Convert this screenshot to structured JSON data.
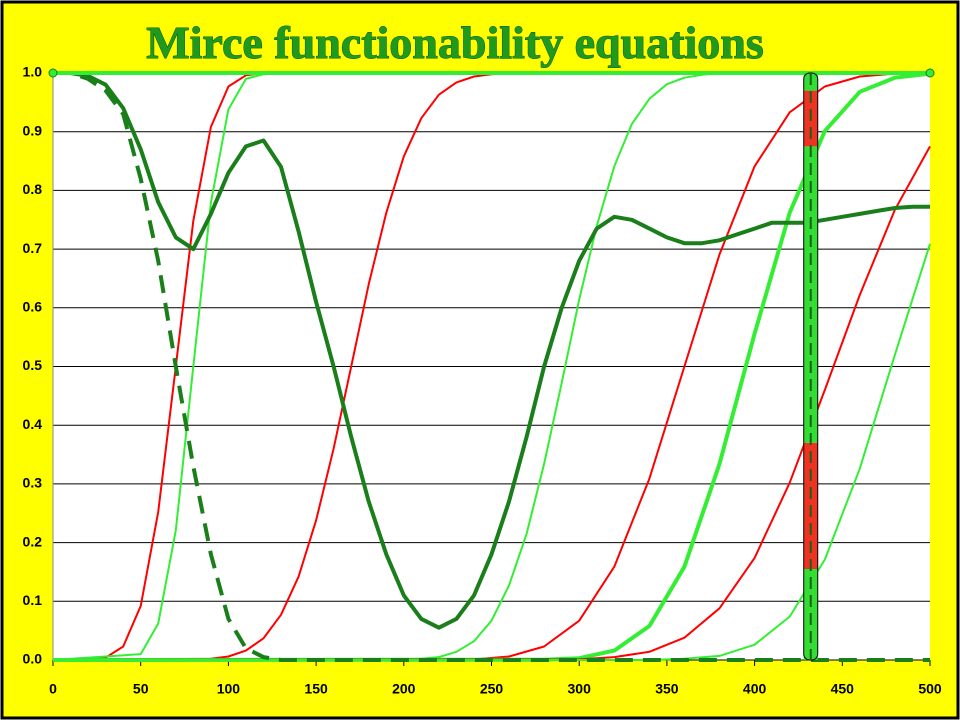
{
  "chart_data": {
    "type": "line",
    "title": "Mirce functionability equations",
    "xlim": [
      0,
      500
    ],
    "ylim": [
      0,
      1
    ],
    "xticks": [
      0,
      50,
      100,
      150,
      200,
      250,
      300,
      350,
      400,
      450,
      500
    ],
    "yticks": [
      {
        "value": 0,
        "label": "0.0"
      },
      0.1,
      0.2,
      0.3,
      0.4,
      0.5,
      0.6,
      0.7,
      0.8,
      0.9,
      {
        "value": 1,
        "label": "1.0"
      }
    ],
    "grid": true,
    "series": [
      {
        "color": "#ff0000",
        "width": 2,
        "x": [
          0,
          30,
          40,
          50,
          60,
          70,
          80,
          90,
          100,
          110,
          120,
          500
        ],
        "values": [
          0,
          0.004,
          0.023,
          0.092,
          0.252,
          0.5,
          0.748,
          0.908,
          0.977,
          0.996,
          1,
          1
        ]
      },
      {
        "color": "#33ee33",
        "width": 2,
        "x": [
          0,
          50,
          60,
          70,
          80,
          90,
          100,
          110,
          120,
          130,
          500
        ],
        "values": [
          0,
          0.01,
          0.062,
          0.221,
          0.5,
          0.779,
          0.938,
          0.99,
          0.998,
          1,
          1
        ]
      },
      {
        "color": "#ff0000",
        "width": 2,
        "x": [
          0,
          90,
          100,
          110,
          120,
          130,
          140,
          150,
          160,
          170,
          180,
          190,
          200,
          210,
          220,
          230,
          240,
          250,
          260,
          500
        ],
        "values": [
          0,
          0.002,
          0.006,
          0.016,
          0.037,
          0.077,
          0.142,
          0.238,
          0.36,
          0.5,
          0.64,
          0.762,
          0.858,
          0.923,
          0.963,
          0.984,
          0.994,
          0.998,
          1,
          1
        ]
      },
      {
        "color": "#33ee33",
        "width": 2,
        "x": [
          0,
          200,
          210,
          220,
          230,
          240,
          250,
          260,
          270,
          280,
          290,
          300,
          310,
          320,
          330,
          340,
          350,
          360,
          370,
          380,
          500
        ],
        "values": [
          0,
          0.0005,
          0.002,
          0.005,
          0.014,
          0.032,
          0.067,
          0.127,
          0.215,
          0.334,
          0.472,
          0.614,
          0.739,
          0.841,
          0.913,
          0.956,
          0.981,
          0.992,
          0.997,
          1,
          1
        ]
      },
      {
        "color": "#ff0000",
        "width": 2,
        "x": [
          0,
          240,
          260,
          280,
          300,
          320,
          340,
          360,
          380,
          400,
          420,
          440,
          460,
          480,
          500
        ],
        "values": [
          0,
          0.001,
          0.006,
          0.023,
          0.067,
          0.159,
          0.309,
          0.5,
          0.691,
          0.841,
          0.933,
          0.977,
          0.994,
          0.999,
          1
        ]
      },
      {
        "color": "#33ee33",
        "width": 4,
        "x": [
          0,
          280,
          300,
          320,
          340,
          360,
          380,
          400,
          420,
          440,
          460,
          480,
          500
        ],
        "values": [
          0,
          0.0005,
          0.003,
          0.016,
          0.058,
          0.159,
          0.334,
          0.556,
          0.762,
          0.901,
          0.968,
          0.992,
          0.999
        ]
      },
      {
        "color": "#ff0000",
        "width": 2,
        "x": [
          0,
          300,
          320,
          340,
          360,
          380,
          400,
          420,
          440,
          460,
          480,
          500
        ],
        "values": [
          0,
          0.001,
          0.005,
          0.014,
          0.038,
          0.088,
          0.174,
          0.302,
          0.46,
          0.622,
          0.767,
          0.875
        ]
      },
      {
        "color": "#33ee33",
        "width": 2,
        "x": [
          0,
          340,
          360,
          380,
          400,
          420,
          440,
          460,
          480,
          500
        ],
        "values": [
          0,
          0,
          0.002,
          0.007,
          0.026,
          0.074,
          0.171,
          0.326,
          0.52,
          0.709
        ]
      },
      {
        "color": "#1a7f1a",
        "width": 4,
        "dash": "18 10",
        "x": [
          0,
          10,
          20,
          30,
          40,
          50,
          60,
          70,
          80,
          90,
          100,
          110,
          120,
          130,
          500
        ],
        "values": [
          1,
          1,
          0.99,
          0.97,
          0.93,
          0.82,
          0.68,
          0.5,
          0.33,
          0.18,
          0.07,
          0.02,
          0.005,
          0,
          0
        ]
      },
      {
        "color": "#1a7f1a",
        "width": 4,
        "x": [
          0,
          10,
          20,
          30,
          40,
          50,
          60,
          70,
          80,
          90,
          100,
          110,
          120,
          130,
          140,
          150,
          160,
          170,
          180,
          190,
          200,
          210,
          220,
          230,
          240,
          250,
          260,
          270,
          280,
          290,
          300,
          310,
          320,
          330,
          340,
          350,
          360,
          370,
          380,
          390,
          400,
          410,
          420,
          430,
          440,
          450,
          460,
          470,
          480,
          490,
          500
        ],
        "values": [
          1,
          1,
          0.995,
          0.98,
          0.94,
          0.87,
          0.78,
          0.72,
          0.7,
          0.76,
          0.83,
          0.875,
          0.885,
          0.84,
          0.73,
          0.61,
          0.5,
          0.38,
          0.27,
          0.18,
          0.11,
          0.07,
          0.055,
          0.07,
          0.11,
          0.18,
          0.27,
          0.38,
          0.5,
          0.6,
          0.68,
          0.735,
          0.755,
          0.75,
          0.735,
          0.72,
          0.71,
          0.71,
          0.715,
          0.725,
          0.735,
          0.745,
          0.745,
          0.745,
          0.75,
          0.755,
          0.76,
          0.765,
          0.77,
          0.772,
          0.772
        ]
      },
      {
        "color": "#33ee33",
        "width": 4,
        "markers": true,
        "x": [
          0,
          500
        ],
        "values": [
          1,
          1
        ]
      }
    ],
    "time_marker": {
      "x": 432,
      "segments": [
        {
          "from": 0,
          "to": 0.155,
          "color": "#33dd33"
        },
        {
          "from": 0.155,
          "to": 0.37,
          "color": "#ee3322"
        },
        {
          "from": 0.37,
          "to": 0.875,
          "color": "#33dd33"
        },
        {
          "from": 0.875,
          "to": 0.97,
          "color": "#ee3322"
        },
        {
          "from": 0.97,
          "to": 1,
          "color": "#33dd33"
        }
      ]
    }
  }
}
